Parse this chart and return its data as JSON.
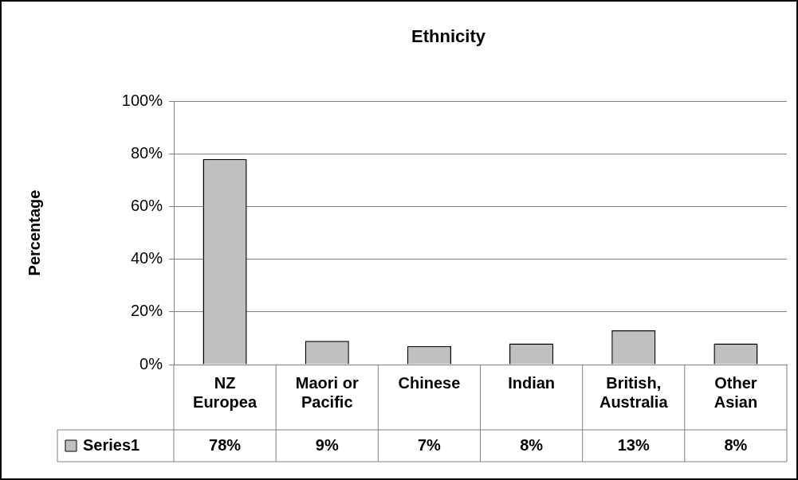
{
  "chart_data": {
    "type": "bar",
    "title": "Ethnicity",
    "ylabel": "Percentage",
    "categories": [
      "NZ Europea",
      "Maori or Pacific",
      "Chinese",
      "Indian",
      "British, Australia",
      "Other Asian"
    ],
    "series": [
      {
        "name": "Series1",
        "color": "#c0c0c0",
        "values": [
          78,
          9,
          7,
          8,
          13,
          8
        ],
        "value_labels": [
          "78%",
          "9%",
          "7%",
          "8%",
          "13%",
          "8%"
        ]
      }
    ],
    "ylim": [
      0,
      100
    ],
    "yticks": [
      {
        "value": 0,
        "label": "0%"
      },
      {
        "value": 20,
        "label": "20%"
      },
      {
        "value": 40,
        "label": "40%"
      },
      {
        "value": 60,
        "label": "60%"
      },
      {
        "value": 80,
        "label": "80%"
      },
      {
        "value": 100,
        "label": "100%"
      }
    ],
    "grid": "y"
  }
}
